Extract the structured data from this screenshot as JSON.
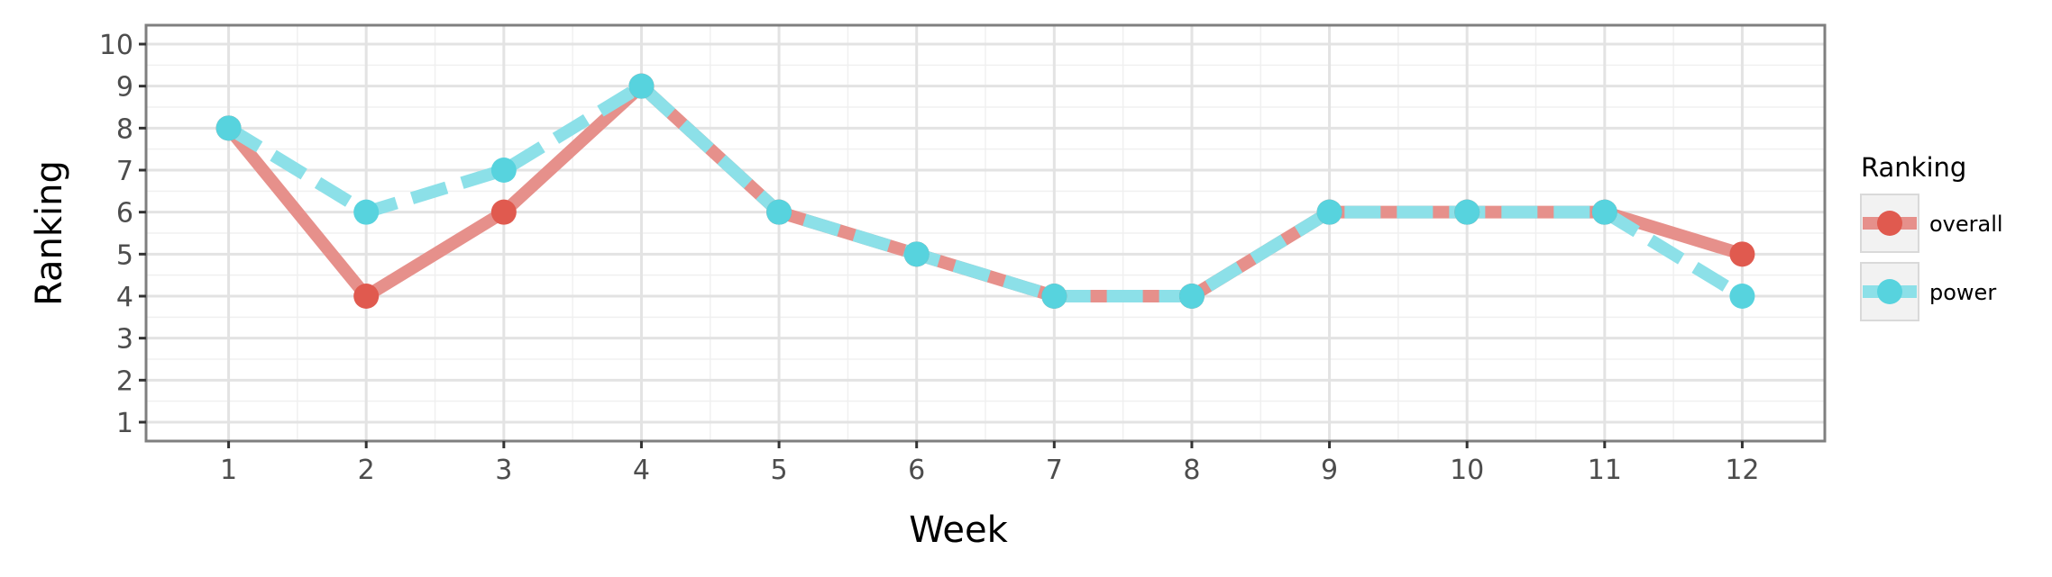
{
  "chart_data": {
    "type": "line",
    "title": "",
    "xlabel": "Week",
    "ylabel": "Ranking",
    "x": [
      1,
      2,
      3,
      4,
      5,
      6,
      7,
      8,
      9,
      10,
      11,
      12
    ],
    "x_ticks": [
      "1",
      "2",
      "3",
      "4",
      "5",
      "6",
      "7",
      "8",
      "9",
      "10",
      "11",
      "12"
    ],
    "y_ticks": [
      "1",
      "2",
      "3",
      "4",
      "5",
      "6",
      "7",
      "8",
      "9",
      "10"
    ],
    "xlim": [
      0.4,
      12.6
    ],
    "ylim": [
      10.45,
      0.55
    ],
    "y_reversed": true,
    "grid": true,
    "legend": {
      "title": "Ranking",
      "placement": "right"
    },
    "series": [
      {
        "name": "overall",
        "color": "#e05a4f",
        "line_color": "#e6908b",
        "line_style": "solid",
        "values": [
          8,
          4,
          6,
          9,
          6,
          5,
          4,
          4,
          6,
          6,
          6,
          5
        ]
      },
      {
        "name": "power",
        "color": "#57d3de",
        "line_color": "#8ce0e8",
        "line_style": "dashed",
        "values": [
          8,
          6,
          7,
          9,
          6,
          5,
          4,
          4,
          6,
          6,
          6,
          4
        ]
      }
    ]
  }
}
